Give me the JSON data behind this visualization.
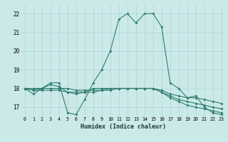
{
  "xlabel": "Humidex (Indice chaleur)",
  "background_color": "#cce9e9",
  "grid_color": "#aad4d4",
  "line_color": "#2e7d6e",
  "ylim": [
    16.5,
    22.5
  ],
  "yticks": [
    17,
    18,
    19,
    20,
    21,
    22
  ],
  "xlim": [
    -0.5,
    23.5
  ],
  "series_main": [
    18.0,
    17.7,
    18.0,
    18.3,
    18.3,
    16.7,
    16.6,
    17.4,
    18.3,
    19.0,
    20.0,
    21.7,
    22.0,
    21.5,
    22.0,
    22.0,
    21.3,
    18.3,
    18.0,
    17.5,
    17.6,
    17.0,
    16.7,
    16.6
  ],
  "series_flat1": [
    18.0,
    17.9,
    18.0,
    18.2,
    18.1,
    17.8,
    17.7,
    17.8,
    18.0,
    18.0,
    18.0,
    18.0,
    18.0,
    18.0,
    18.0,
    18.0,
    17.8,
    17.5,
    17.3,
    17.1,
    17.0,
    16.9,
    16.8,
    16.7
  ],
  "series_flat2": [
    18.0,
    17.9,
    17.9,
    17.9,
    17.9,
    17.8,
    17.8,
    17.8,
    17.8,
    17.9,
    17.9,
    18.0,
    18.0,
    18.0,
    18.0,
    18.0,
    17.8,
    17.6,
    17.4,
    17.3,
    17.2,
    17.1,
    17.0,
    16.9
  ],
  "series_flat3": [
    18.0,
    18.0,
    18.0,
    18.0,
    18.0,
    18.0,
    17.9,
    17.9,
    17.9,
    17.9,
    18.0,
    18.0,
    18.0,
    18.0,
    18.0,
    18.0,
    17.9,
    17.7,
    17.6,
    17.5,
    17.5,
    17.4,
    17.3,
    17.2
  ]
}
